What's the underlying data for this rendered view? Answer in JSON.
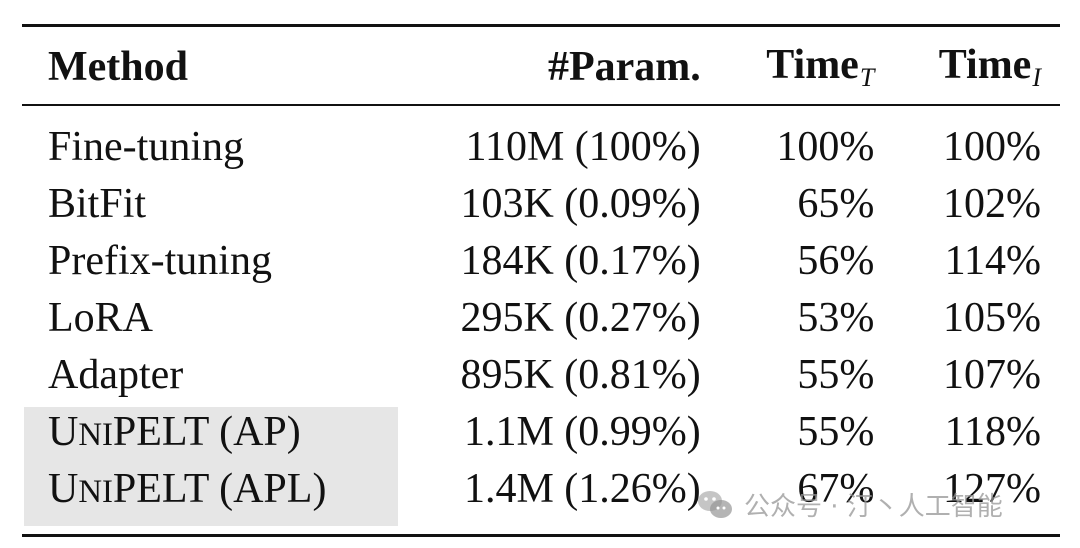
{
  "table": {
    "headers": {
      "method": "Method",
      "params": "#Param.",
      "time_t_base": "Time",
      "time_t_sub": "T",
      "time_i_base": "Time",
      "time_i_sub": "I"
    },
    "rows": [
      {
        "method": "Fine-tuning",
        "params": "110M (100%)",
        "time_t": "100%",
        "time_i": "100%"
      },
      {
        "method": "BitFit",
        "params": "103K (0.09%)",
        "time_t": "65%",
        "time_i": "102%"
      },
      {
        "method": "Prefix-tuning",
        "params": "184K (0.17%)",
        "time_t": "56%",
        "time_i": "114%"
      },
      {
        "method": "LoRA",
        "params": "295K (0.27%)",
        "time_t": "53%",
        "time_i": "105%"
      },
      {
        "method": "Adapter",
        "params": "895K (0.81%)",
        "time_t": "55%",
        "time_i": "107%"
      },
      {
        "method_parts": [
          "U",
          "NI",
          "PELT (AP)"
        ],
        "params": "1.1M (0.99%)",
        "time_t": "55%",
        "time_i": "118%"
      },
      {
        "method_parts": [
          "U",
          "NI",
          "PELT (APL)"
        ],
        "params": "1.4M (1.26%)",
        "time_t": "67%",
        "time_i": "127%"
      }
    ],
    "highlight_color": "#e6e6e6"
  },
  "watermark": {
    "text": "公众号 · 汀丶人工智能",
    "icon": "wechat-icon"
  }
}
